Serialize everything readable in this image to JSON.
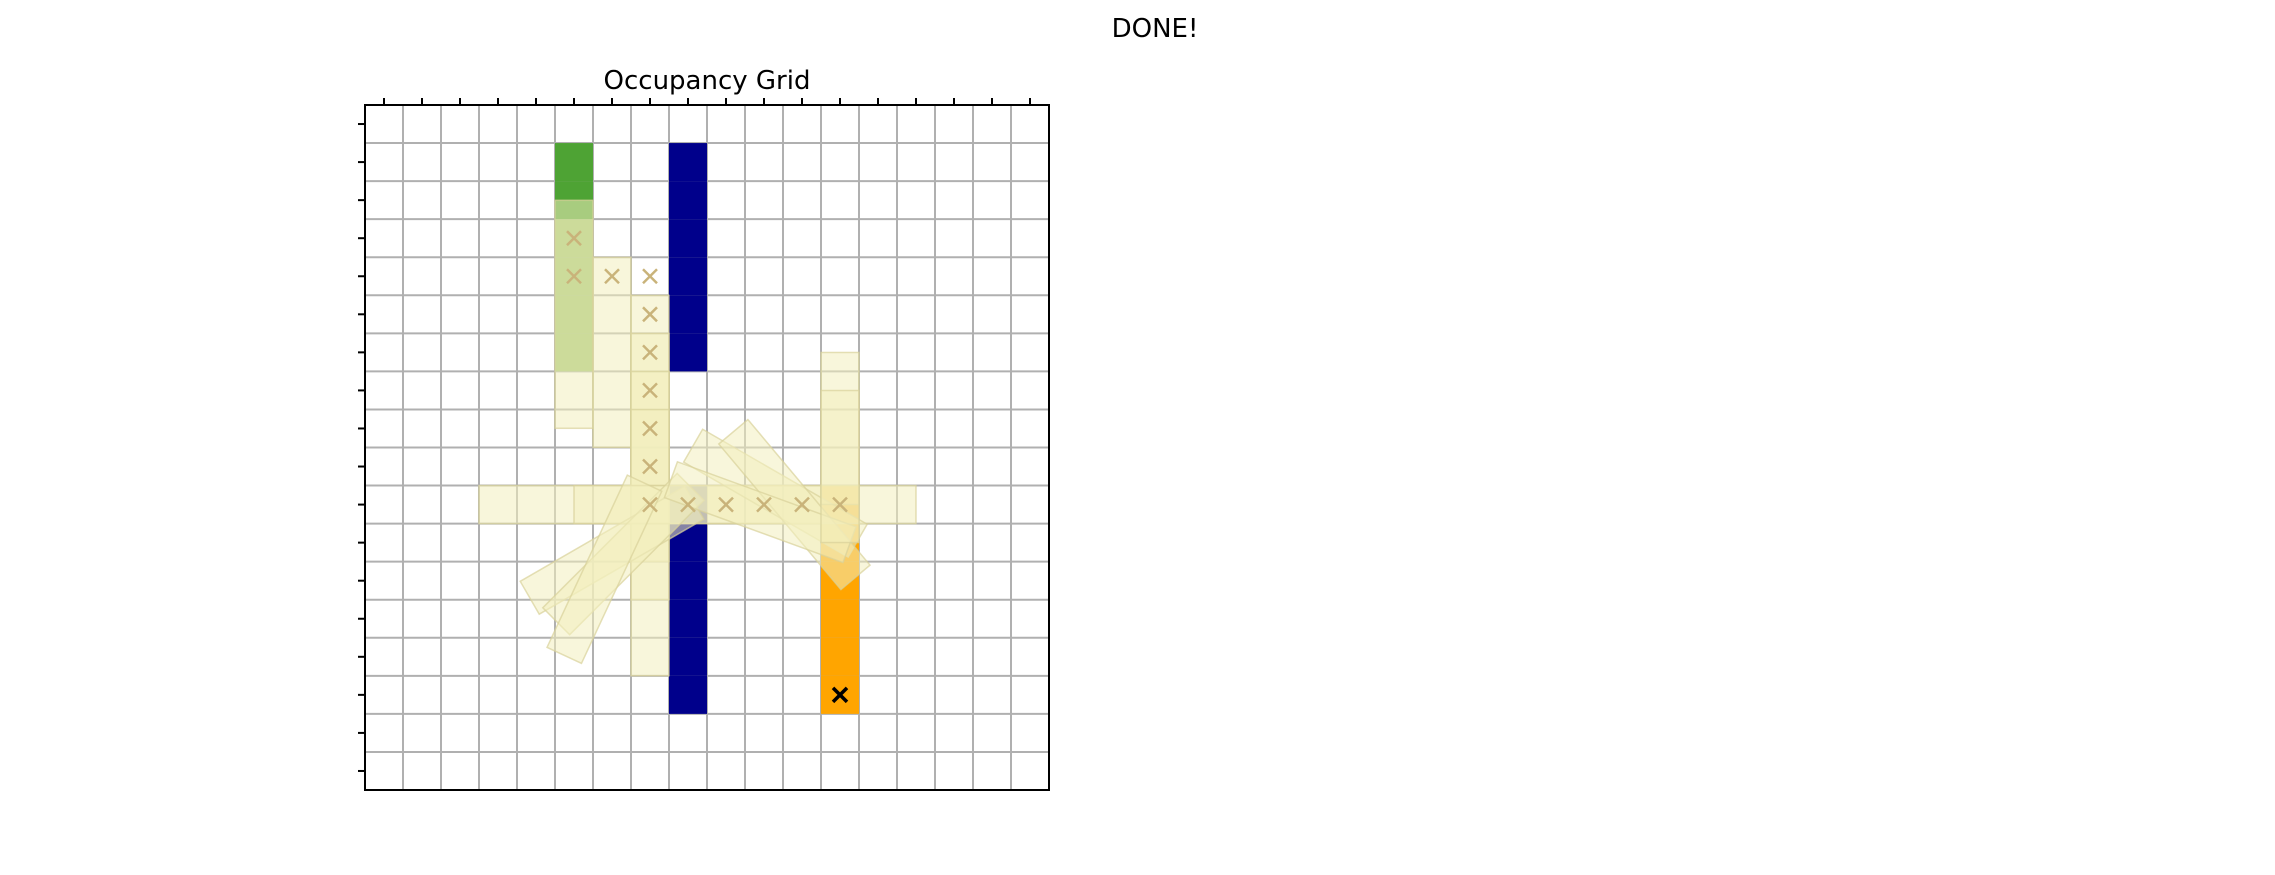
{
  "status_text": "DONE!",
  "chart_data": {
    "type": "heatmap",
    "title": "Occupancy Grid",
    "grid": true,
    "xlim": [
      0,
      18
    ],
    "ylim": [
      0,
      18
    ],
    "colors": {
      "grid_line": "#b0b0b0",
      "obstacle": "#00008b",
      "start_dark": "#4ea334",
      "start_light": "#9dc46f",
      "goal": "#ffa500",
      "trail": "#f3efbd",
      "trail_marker": "#c9b37a",
      "goal_marker": "#000000"
    },
    "cells": {
      "obstacles": [
        {
          "x": 8,
          "y": 11
        },
        {
          "x": 8,
          "y": 12
        },
        {
          "x": 8,
          "y": 13
        },
        {
          "x": 8,
          "y": 14
        },
        {
          "x": 8,
          "y": 15
        },
        {
          "x": 8,
          "y": 16
        },
        {
          "x": 8,
          "y": 2
        },
        {
          "x": 8,
          "y": 3
        },
        {
          "x": 8,
          "y": 4
        },
        {
          "x": 8,
          "y": 5
        },
        {
          "x": 8,
          "y": 6
        },
        {
          "x": 8,
          "y": 7
        }
      ],
      "start_vehicle": [
        {
          "x": 5,
          "y": 16,
          "shade": "dark"
        },
        {
          "x": 5,
          "y": 15,
          "shade": "dark"
        },
        {
          "x": 5,
          "y": 14,
          "shade": "light"
        },
        {
          "x": 5,
          "y": 13,
          "shade": "light"
        },
        {
          "x": 5,
          "y": 12,
          "shade": "light"
        },
        {
          "x": 5,
          "y": 11,
          "shade": "light"
        }
      ],
      "goal_vehicle": [
        {
          "x": 12,
          "y": 7
        },
        {
          "x": 12,
          "y": 6
        },
        {
          "x": 12,
          "y": 5
        },
        {
          "x": 12,
          "y": 4
        },
        {
          "x": 12,
          "y": 3
        },
        {
          "x": 12,
          "y": 2
        }
      ]
    },
    "trail_path": [
      {
        "x": 5.5,
        "y": 14.5
      },
      {
        "x": 5.5,
        "y": 13.5
      },
      {
        "x": 6.5,
        "y": 13.5
      },
      {
        "x": 7.5,
        "y": 13.5
      },
      {
        "x": 7.5,
        "y": 12.5
      },
      {
        "x": 7.5,
        "y": 11.5
      },
      {
        "x": 7.5,
        "y": 10.5
      },
      {
        "x": 7.5,
        "y": 9.5
      },
      {
        "x": 7.5,
        "y": 8.5
      },
      {
        "x": 7.5,
        "y": 7.5
      },
      {
        "x": 8.5,
        "y": 7.5
      },
      {
        "x": 9.5,
        "y": 7.5
      },
      {
        "x": 10.5,
        "y": 7.5
      },
      {
        "x": 11.5,
        "y": 7.5
      },
      {
        "x": 12.5,
        "y": 7.5
      }
    ],
    "trail_footprints": [
      {
        "cx": 5.5,
        "cy": 12.5,
        "len": 6,
        "angle": 90
      },
      {
        "cx": 6.5,
        "cy": 11.5,
        "len": 5,
        "angle": 90
      },
      {
        "cx": 7.5,
        "cy": 10.5,
        "len": 5,
        "angle": 90
      },
      {
        "cx": 7.5,
        "cy": 9.5,
        "len": 5,
        "angle": 90
      },
      {
        "cx": 7.5,
        "cy": 8.5,
        "len": 5,
        "angle": 90
      },
      {
        "cx": 7.5,
        "cy": 7.5,
        "len": 5,
        "angle": 90
      },
      {
        "cx": 7.5,
        "cy": 5.5,
        "len": 5,
        "angle": 90
      },
      {
        "cx": 7.5,
        "cy": 7.5,
        "len": 9,
        "angle": 0
      },
      {
        "cx": 10.0,
        "cy": 7.5,
        "len": 9,
        "angle": 0
      },
      {
        "cx": 6.5,
        "cy": 6.3,
        "len": 5,
        "angle": 30
      },
      {
        "cx": 6.8,
        "cy": 6.2,
        "len": 5,
        "angle": 45
      },
      {
        "cx": 6.3,
        "cy": 5.8,
        "len": 5,
        "angle": 65
      },
      {
        "cx": 10.8,
        "cy": 7.8,
        "len": 5,
        "angle": -30
      },
      {
        "cx": 11.3,
        "cy": 7.5,
        "len": 5,
        "angle": -50
      },
      {
        "cx": 10.4,
        "cy": 7.3,
        "len": 5,
        "angle": -20
      },
      {
        "cx": 12.5,
        "cy": 9.5,
        "len": 4,
        "angle": 90
      },
      {
        "cx": 12.5,
        "cy": 8.5,
        "len": 4,
        "angle": 90
      }
    ],
    "goal_marker": {
      "x": 12.5,
      "y": 2.5
    }
  }
}
